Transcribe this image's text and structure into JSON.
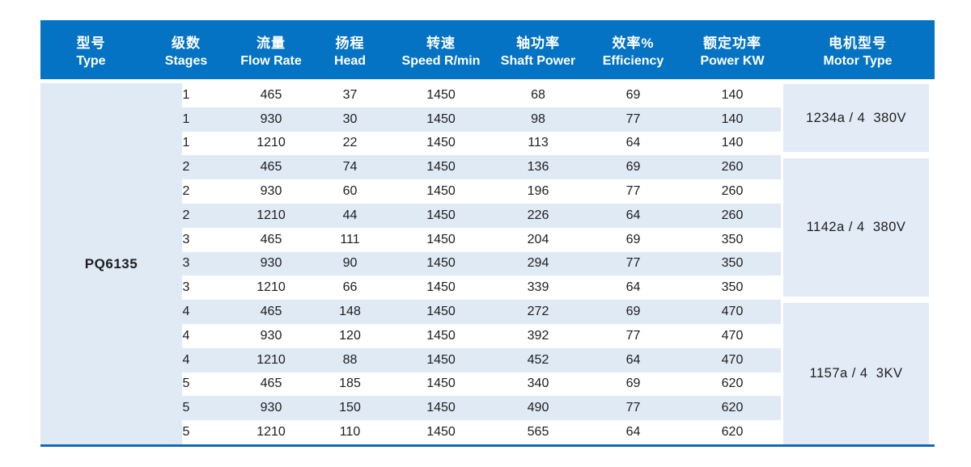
{
  "table": {
    "colors": {
      "header_bg": "#0473c4",
      "header_text": "#ffffff",
      "row_stripe": "#dfeaf5",
      "merged_cell_bg": "#e2ebf6",
      "bottom_border": "#1368b4",
      "body_text": "#1d1d1f"
    },
    "columns": [
      {
        "zh": "型号",
        "en": "Type"
      },
      {
        "zh": "级数",
        "en": "Stages"
      },
      {
        "zh": "流量",
        "en": "Flow Rate"
      },
      {
        "zh": "扬程",
        "en": "Head"
      },
      {
        "zh": "转速",
        "en": "Speed R/min"
      },
      {
        "zh": "轴功率",
        "en": "Shaft Power"
      },
      {
        "zh": "效率%",
        "en": "Efficiency"
      },
      {
        "zh": "额定功率",
        "en": "Power KW"
      },
      {
        "zh": "电机型号",
        "en": "Motor Type"
      }
    ],
    "type": "PQ6135",
    "row_fields": [
      "stages",
      "flow-rate",
      "head",
      "speed",
      "shaft-power",
      "efficiency",
      "power-kw"
    ],
    "rows": [
      [
        1,
        465,
        37,
        1450,
        68,
        69,
        140
      ],
      [
        1,
        930,
        30,
        1450,
        98,
        77,
        140
      ],
      [
        1,
        1210,
        22,
        1450,
        113,
        64,
        140
      ],
      [
        2,
        465,
        74,
        1450,
        136,
        69,
        260
      ],
      [
        2,
        930,
        60,
        1450,
        196,
        77,
        260
      ],
      [
        2,
        1210,
        44,
        1450,
        226,
        64,
        260
      ],
      [
        3,
        465,
        111,
        1450,
        204,
        69,
        350
      ],
      [
        3,
        930,
        90,
        1450,
        294,
        77,
        350
      ],
      [
        3,
        1210,
        66,
        1450,
        339,
        64,
        350
      ],
      [
        4,
        465,
        148,
        1450,
        272,
        69,
        470
      ],
      [
        4,
        930,
        120,
        1450,
        392,
        77,
        470
      ],
      [
        4,
        1210,
        88,
        1450,
        452,
        64,
        470
      ],
      [
        5,
        465,
        185,
        1450,
        340,
        69,
        620
      ],
      [
        5,
        930,
        150,
        1450,
        490,
        77,
        620
      ],
      [
        5,
        1210,
        110,
        1450,
        565,
        64,
        620
      ]
    ],
    "motor_groups": [
      {
        "label": "1234a / 4  380V",
        "row_start": 0,
        "row_count": 3
      },
      {
        "label": "1142a / 4  380V",
        "row_start": 3,
        "row_count": 6
      },
      {
        "label": "1157a / 4  3KV",
        "row_start": 9,
        "row_count": 6
      }
    ]
  }
}
